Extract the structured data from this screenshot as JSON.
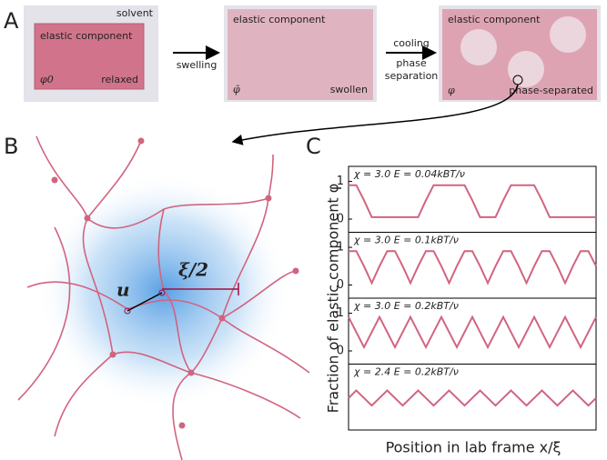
{
  "panels": [
    "A",
    "B",
    "C"
  ],
  "panel_a": {
    "solvent": "solvent",
    "elastic_1": "elastic component",
    "phi0": "φ0",
    "relaxed": "relaxed",
    "swelling": "swelling",
    "elastic_2": "elastic component",
    "phibar": "φ̄",
    "swollen": "swollen",
    "cooling": "cooling",
    "phase": "phase",
    "separation": "separation",
    "elastic_3": "elastic component",
    "phi": "φ",
    "phase_separated": "phase-separated"
  },
  "panel_b": {
    "u": "u",
    "xi": "ξ/2"
  },
  "panel_c": {
    "ylabel": "Fraction of elastic component φ",
    "xlabel": "Position in lab frame x/ξ"
  },
  "chart_data": [
    {
      "type": "line",
      "annotation": "χ = 3.0    E = 0.04kBT/ν",
      "color": "#d1647f",
      "x": [
        0,
        1,
        2,
        3,
        4,
        5,
        6,
        7,
        8,
        9,
        10,
        11,
        12,
        13,
        14,
        15,
        16,
        17,
        18,
        19,
        20,
        21,
        22,
        23,
        24,
        25,
        26,
        27,
        28,
        29,
        30,
        31,
        32
      ],
      "values": [
        0.9,
        0.9,
        0.5,
        0.05,
        0.05,
        0.05,
        0.05,
        0.05,
        0.05,
        0.05,
        0.5,
        0.9,
        0.9,
        0.9,
        0.9,
        0.9,
        0.5,
        0.05,
        0.05,
        0.05,
        0.5,
        0.9,
        0.9,
        0.9,
        0.9,
        0.5,
        0.05,
        0.05,
        0.05,
        0.05,
        0.05,
        0.05,
        0.05
      ],
      "xlim": [
        0,
        32
      ],
      "ylim": [
        -0.35,
        1.4
      ],
      "yticks": [
        0,
        1
      ]
    },
    {
      "type": "line",
      "annotation": "χ = 3.0    E = 0.1kBT/ν",
      "color": "#d1647f",
      "x": [
        0,
        1,
        2,
        3,
        4,
        5,
        6,
        7,
        8,
        9,
        10,
        11,
        12,
        13,
        14,
        15,
        16,
        17,
        18,
        19,
        20,
        21,
        22,
        23,
        24,
        25,
        26,
        27,
        28,
        29,
        30,
        31,
        32
      ],
      "values": [
        0.9,
        0.9,
        0.5,
        0.05,
        0.5,
        0.9,
        0.9,
        0.5,
        0.05,
        0.5,
        0.9,
        0.9,
        0.5,
        0.05,
        0.5,
        0.9,
        0.9,
        0.5,
        0.05,
        0.5,
        0.9,
        0.9,
        0.5,
        0.05,
        0.5,
        0.9,
        0.9,
        0.5,
        0.05,
        0.5,
        0.9,
        0.9,
        0.5
      ],
      "xlim": [
        0,
        32
      ],
      "ylim": [
        -0.35,
        1.4
      ],
      "yticks": [
        0,
        1
      ]
    },
    {
      "type": "line",
      "annotation": "χ = 3.0    E = 0.2kBT/ν",
      "color": "#d1647f",
      "x": [
        0,
        1,
        2,
        3,
        4,
        5,
        6,
        7,
        8,
        9,
        10,
        11,
        12,
        13,
        14,
        15,
        16,
        17,
        18,
        19,
        20,
        21,
        22,
        23,
        24,
        25,
        26,
        27,
        28,
        29,
        30,
        31,
        32
      ],
      "values": [
        0.9,
        0.5,
        0.1,
        0.5,
        0.9,
        0.5,
        0.1,
        0.5,
        0.9,
        0.5,
        0.1,
        0.5,
        0.9,
        0.5,
        0.1,
        0.5,
        0.9,
        0.5,
        0.1,
        0.5,
        0.9,
        0.5,
        0.1,
        0.5,
        0.9,
        0.5,
        0.1,
        0.5,
        0.9,
        0.5,
        0.1,
        0.5,
        0.9
      ],
      "xlim": [
        0,
        32
      ],
      "ylim": [
        -0.35,
        1.4
      ],
      "yticks": [
        0,
        1
      ]
    },
    {
      "type": "line",
      "annotation": "χ = 2.4    E = 0.2kBT/ν",
      "color": "#d1647f",
      "x": [
        0,
        1,
        2,
        3,
        4,
        5,
        6,
        7,
        8,
        9,
        10,
        11,
        12,
        13,
        14,
        15,
        16,
        17,
        18,
        19,
        20,
        21,
        22,
        23,
        24,
        25,
        26,
        27,
        28,
        29,
        30,
        31,
        32
      ],
      "values": [
        0.5,
        0.7,
        0.5,
        0.3,
        0.5,
        0.7,
        0.5,
        0.3,
        0.5,
        0.7,
        0.5,
        0.3,
        0.5,
        0.7,
        0.5,
        0.3,
        0.5,
        0.7,
        0.5,
        0.3,
        0.5,
        0.7,
        0.5,
        0.3,
        0.5,
        0.7,
        0.5,
        0.3,
        0.5,
        0.7,
        0.5,
        0.3,
        0.5
      ],
      "xlim": [
        0,
        32
      ],
      "ylim": [
        -0.35,
        1.4
      ]
    }
  ]
}
